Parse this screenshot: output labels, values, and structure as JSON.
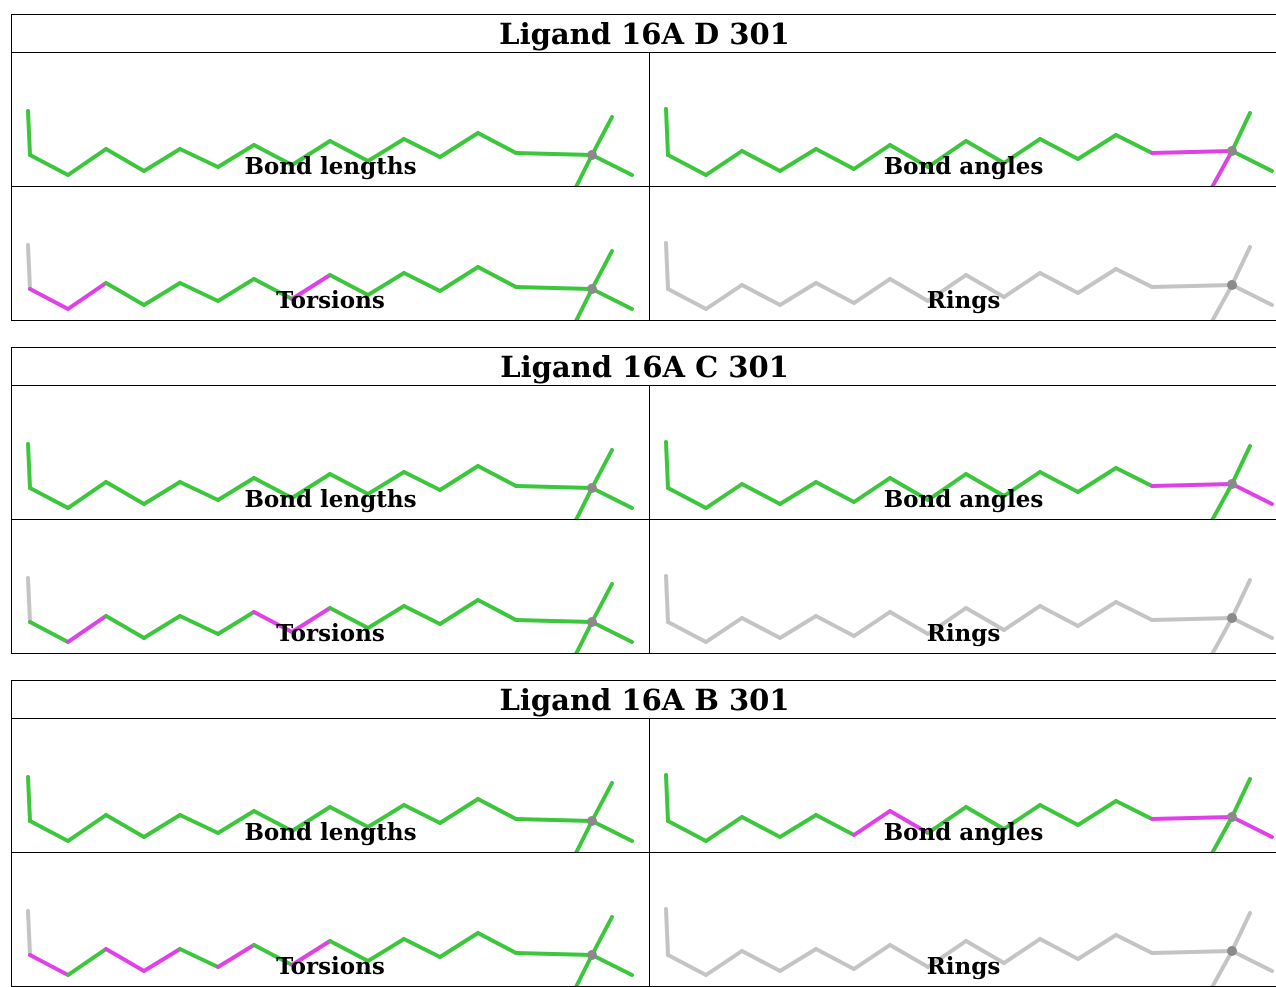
{
  "colors": {
    "ok": "#3cc63c",
    "outlier": "#e040e8",
    "neutral": "#c4c4c4",
    "atom": "#8a8a8a"
  },
  "tables": [
    {
      "title": "Ligand 16A D 301",
      "panels": [
        {
          "label": "Bond lengths",
          "variant": "A",
          "highlight": []
        },
        {
          "label": "Bond angles",
          "variant": "B",
          "highlight": [
            "sub_left",
            "sub_down"
          ]
        },
        {
          "label": "Torsions",
          "variant": "A",
          "highlight": [
            "c0",
            "c1",
            "c7"
          ]
        },
        {
          "label": "Rings",
          "variant": "B",
          "highlight": [],
          "gray": true
        }
      ]
    },
    {
      "title": "Ligand 16A C 301",
      "panels": [
        {
          "label": "Bond lengths",
          "variant": "A",
          "highlight": []
        },
        {
          "label": "Bond angles",
          "variant": "B",
          "highlight": [
            "sub_left",
            "sub_right"
          ]
        },
        {
          "label": "Torsions",
          "variant": "A",
          "highlight": [
            "c1",
            "c6",
            "c7"
          ]
        },
        {
          "label": "Rings",
          "variant": "B",
          "highlight": [],
          "gray": true
        }
      ]
    },
    {
      "title": "Ligand 16A B 301",
      "panels": [
        {
          "label": "Bond lengths",
          "variant": "A",
          "highlight": []
        },
        {
          "label": "Bond angles",
          "variant": "B",
          "highlight": [
            "c5",
            "c6",
            "sub_left",
            "sub_right"
          ]
        },
        {
          "label": "Torsions",
          "variant": "A",
          "highlight": [
            "c0",
            "c2",
            "c3",
            "c5",
            "c7"
          ]
        },
        {
          "label": "Rings",
          "variant": "B",
          "highlight": [],
          "gray": true
        }
      ]
    }
  ]
}
